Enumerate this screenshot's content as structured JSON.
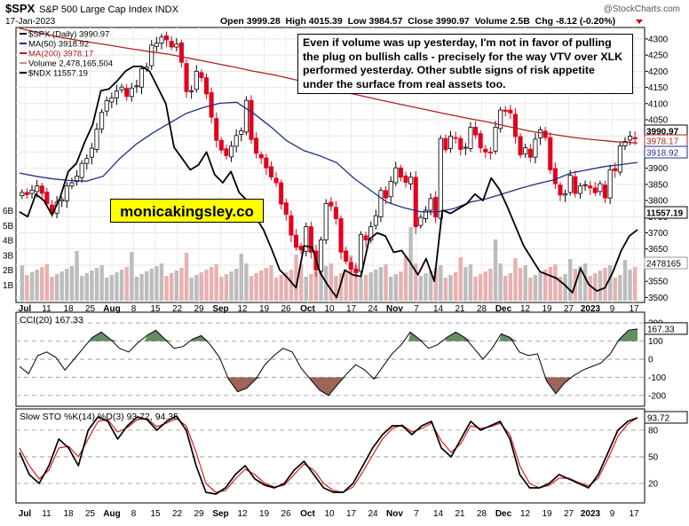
{
  "header": {
    "ticker": "$SPX",
    "name": "S&P 500 Large Cap Index INDX",
    "date": "17-Jan-2023",
    "quote": "Open 3999.28  High 4015.39  Low 3984.57  Close 3990.97  Volume 2.5B  Chg -8.12 (-0.20%)",
    "watermark": "@StockCharts.com"
  },
  "legend": [
    {
      "label": "$SPX (Daily) 3990.97",
      "color": "#000000"
    },
    {
      "label": "MA(50) 3918.92",
      "color": "#1f2f8a"
    },
    {
      "label": "MA(200) 3978.17",
      "color": "#b22222"
    },
    {
      "label": "Volume 2,478,165,504",
      "color": "#c98c8c"
    },
    {
      "label": "$NDX 11557.19",
      "color": "#000000"
    }
  ],
  "annotation": "Even if volume was up yesterday, I'm not in favor of pulling the plug on bullish calls - precisely for the way VTV over XLK performed yesterday. Other subtle signs of risk appetite under the surface from real assets too.",
  "brand": "monicakingsley.co",
  "price_labels": {
    "last": "3990.97",
    "ma200": "3978.17",
    "ma50": "3918.92",
    "ndx": "11557.19",
    "vol": "2478165"
  },
  "cci_label": "CCI(20) 167.33",
  "cci_last": "167.33",
  "sto_label": "Slow STO %K(14) %D(3) 93.72, 94.35",
  "sto_last": "93.72",
  "colors": {
    "up": "#000000",
    "down": "#e3001b",
    "ma50": "#1f2f8a",
    "ma200": "#b22222",
    "ndx": "#000000",
    "vol_up": "#bdbdbd",
    "vol_down": "#e8b0b0",
    "cci_pos": "#4a7a4a",
    "cci_neg": "#8b4a3a",
    "k": "#000000",
    "d": "#d32020"
  },
  "chart_data": [
    {
      "type": "line",
      "title": "$SPX S&P 500 Large Cap Index INDX",
      "x_ticks": [
        "Jul",
        "11",
        "18",
        "25",
        "Aug",
        "8",
        "15",
        "22",
        "29",
        "Sep",
        "12",
        "19",
        "26",
        "Oct",
        "10",
        "17",
        "24",
        "Nov",
        "7",
        "14",
        "21",
        "28",
        "Dec",
        "12",
        "19",
        "27",
        "2023",
        "9",
        "17"
      ],
      "y_ticks_right": [
        3500,
        3550,
        3600,
        3650,
        3700,
        3750,
        3800,
        3850,
        3900,
        3950,
        4000,
        4050,
        4100,
        4150,
        4200,
        4250,
        4300
      ],
      "volume_ticks_left": [
        "1B",
        "2B",
        "3B",
        "4B",
        "5B",
        "6B"
      ],
      "ylim": [
        3490,
        4330
      ],
      "series": [
        {
          "name": "$SPX (Daily)",
          "values": [
            3825,
            3818,
            3832,
            3845,
            3822,
            3790,
            3761,
            3795,
            3803,
            3845,
            3855,
            3875,
            3915,
            3930,
            3962,
            4021,
            4073,
            4109,
            4118,
            4139,
            4151,
            4122,
            4148,
            4155,
            4208,
            4213,
            4281,
            4287,
            4306,
            4297,
            4275,
            4284,
            4228,
            4137,
            4140,
            4200,
            4180,
            4130,
            4058,
            3986,
            3956,
            3939,
            3968,
            4001,
            4016,
            4110,
            3989,
            3946,
            3932,
            3901,
            3873,
            3855,
            3789,
            3757,
            3693,
            3655,
            3647,
            3719,
            3640,
            3585,
            3678,
            3791,
            3783,
            3744,
            3640,
            3612,
            3588,
            3577,
            3695,
            3678,
            3719,
            3753,
            3831,
            3808,
            3859,
            3901,
            3872,
            3856,
            3872,
            3719,
            3748,
            3770,
            3806,
            3749,
            3992,
            3957,
            3999,
            3992,
            3958,
            3965,
            4027,
            4003,
            3963,
            3950,
            3949,
            4027,
            4080,
            4076,
            4071,
            3998,
            3941,
            3963,
            3934,
            3990,
            4019,
            3995,
            3895,
            3852,
            3817,
            3821,
            3878,
            3822,
            3845,
            3849,
            3839,
            3824,
            3852,
            3808,
            3895,
            3892,
            3969,
            3983,
            3999,
            3991
          ]
        },
        {
          "name": "MA(50)",
          "values": [
            3885,
            3875,
            3867,
            3862,
            3860,
            3875,
            3930,
            3975,
            4010,
            4040,
            4070,
            4088,
            4101,
            4104,
            4070,
            4030,
            3985,
            3955,
            3938,
            3917,
            3870,
            3832,
            3795,
            3778,
            3765,
            3765,
            3775,
            3795,
            3806,
            3822,
            3838,
            3852,
            3864,
            3885,
            3895,
            3905,
            3911,
            3918
          ]
        },
        {
          "name": "MA(200)",
          "values": [
            4333,
            4318,
            4304,
            4293,
            4283,
            4272,
            4262,
            4253,
            4240,
            4227,
            4214,
            4200,
            4188,
            4173,
            4157,
            4139,
            4125,
            4110,
            4096,
            4082,
            4068,
            4055,
            4043,
            4028,
            4014,
            4005,
            3995,
            3988,
            3982,
            3978
          ]
        },
        {
          "name": "$NDX",
          "values": [
            3765,
            3750,
            3820,
            3800,
            3755,
            3810,
            3890,
            3915,
            3980,
            4035,
            4140,
            4145,
            4170,
            4200,
            4215,
            4215,
            4200,
            4150,
            4100,
            3965,
            3930,
            3895,
            3910,
            3950,
            3880,
            3855,
            3890,
            3825,
            3800,
            3750,
            3710,
            3650,
            3585,
            3560,
            3530,
            3660,
            3655,
            3575,
            3535,
            3500,
            3585,
            3570,
            3565,
            3680,
            3700,
            3690,
            3640,
            3645,
            3610,
            3570,
            3620,
            3550,
            3770,
            3760,
            3775,
            3790,
            3820,
            3800,
            3870,
            3835,
            3780,
            3720,
            3660,
            3620,
            3580,
            3570,
            3560,
            3540,
            3515,
            3590,
            3540,
            3520,
            3530,
            3580,
            3645,
            3690,
            3710
          ]
        }
      ]
    },
    {
      "type": "area",
      "title": "CCI(20) 167.33",
      "y_ticks": [
        -200,
        -100,
        0,
        100,
        200
      ],
      "ylim": [
        -250,
        240
      ],
      "series": [
        {
          "name": "CCI(20)",
          "values": [
            -40,
            -80,
            20,
            40,
            10,
            -60,
            0,
            60,
            120,
            150,
            110,
            60,
            40,
            90,
            130,
            160,
            110,
            60,
            70,
            110,
            130,
            80,
            10,
            -110,
            -180,
            -160,
            -110,
            -30,
            20,
            60,
            40,
            -50,
            -110,
            -170,
            -200,
            -140,
            -80,
            -30,
            -60,
            -110,
            -40,
            30,
            80,
            150,
            110,
            60,
            80,
            120,
            150,
            120,
            60,
            0,
            60,
            140,
            120,
            40,
            20,
            30,
            -120,
            -190,
            -130,
            -90,
            -60,
            -40,
            -20,
            30,
            110,
            160,
            167
          ]
        }
      ]
    },
    {
      "type": "line",
      "title": "Slow STO %K(14) %D(3) 93.72, 94.35",
      "y_ticks": [
        20,
        50,
        80
      ],
      "ylim": [
        0,
        100
      ],
      "series": [
        {
          "name": "%K",
          "values": [
            55,
            30,
            20,
            40,
            70,
            60,
            40,
            80,
            95,
            90,
            70,
            85,
            95,
            92,
            80,
            90,
            96,
            80,
            40,
            10,
            8,
            15,
            30,
            40,
            25,
            18,
            15,
            20,
            35,
            45,
            30,
            15,
            10,
            10,
            20,
            40,
            60,
            75,
            85,
            85,
            75,
            85,
            90,
            60,
            50,
            70,
            90,
            80,
            85,
            90,
            70,
            30,
            15,
            15,
            20,
            30,
            25,
            20,
            15,
            30,
            55,
            80,
            90,
            94
          ]
        },
        {
          "name": "%D",
          "values": [
            60,
            40,
            25,
            35,
            60,
            62,
            50,
            70,
            90,
            92,
            78,
            83,
            92,
            93,
            84,
            88,
            93,
            85,
            55,
            20,
            10,
            12,
            25,
            36,
            30,
            20,
            16,
            18,
            30,
            42,
            35,
            20,
            12,
            10,
            16,
            33,
            52,
            70,
            82,
            86,
            78,
            82,
            88,
            68,
            55,
            65,
            85,
            82,
            84,
            88,
            75,
            40,
            20,
            15,
            18,
            26,
            26,
            21,
            17,
            26,
            48,
            73,
            87,
            94
          ]
        }
      ]
    }
  ]
}
